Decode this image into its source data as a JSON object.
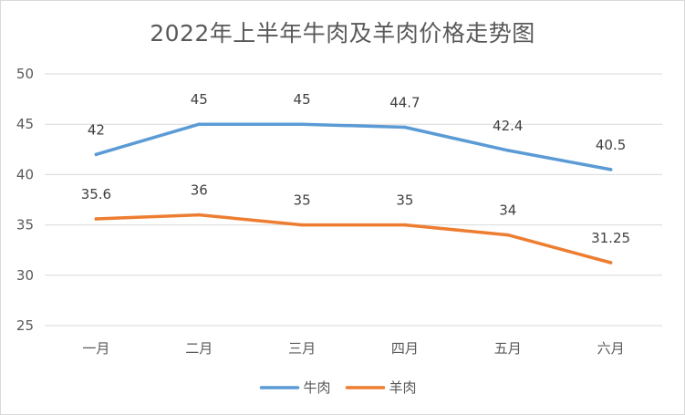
{
  "chart_data": {
    "type": "line",
    "title": "2022年上半年牛肉及羊肉价格走势图",
    "categories": [
      "一月",
      "二月",
      "三月",
      "四月",
      "五月",
      "六月"
    ],
    "series": [
      {
        "name": "牛肉",
        "color": "#5b9bd5",
        "values": [
          42,
          45,
          45,
          44.7,
          42.4,
          40.5
        ],
        "labels": [
          "42",
          "45",
          "45",
          "44.7",
          "42.4",
          "40.5"
        ]
      },
      {
        "name": "羊肉",
        "color": "#ed7d31",
        "values": [
          35.6,
          36,
          35,
          35,
          34,
          31.25
        ],
        "labels": [
          "35.6",
          "36",
          "35",
          "35",
          "34",
          "31.25"
        ]
      }
    ],
    "ylim": [
      25,
      50
    ],
    "yticks": [
      "25",
      "30",
      "35",
      "40",
      "45",
      "50"
    ],
    "grid": true,
    "legend_position": "bottom"
  }
}
